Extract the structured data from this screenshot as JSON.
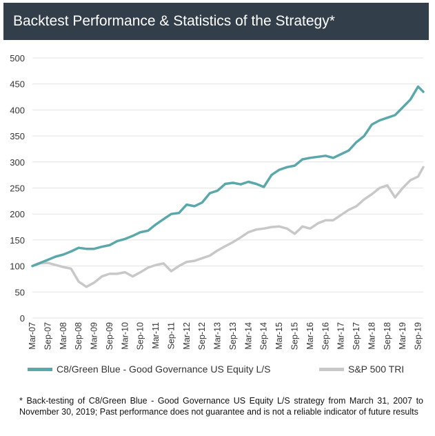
{
  "header": {
    "title": "Backtest Performance & Statistics of the Strategy*"
  },
  "colors": {
    "header_bg": "#333e4b",
    "c8": "#5ba8ab",
    "sp": "#c8c8c8",
    "grid": "#e3e3e3"
  },
  "chart_data": {
    "type": "line",
    "title": "",
    "xlabel": "",
    "ylabel": "",
    "ylim": [
      0,
      500
    ],
    "yticks": [
      0,
      50,
      100,
      150,
      200,
      250,
      300,
      350,
      400,
      450,
      500
    ],
    "xticks": [
      "Mar-07",
      "Sep-07",
      "Mar-08",
      "Sep-08",
      "Mar-09",
      "Sep-09",
      "Mar-10",
      "Sep-10",
      "Mar-11",
      "Sep-11",
      "Mar-12",
      "Sep-12",
      "Mar-13",
      "Sep-13",
      "Mar-14",
      "Sep-14",
      "Mar-15",
      "Sep-15",
      "Mar-16",
      "Sep-16",
      "Mar-17",
      "Sep-17",
      "Mar-18",
      "Sep-18",
      "Mar-19",
      "Sep-19"
    ],
    "grid": true,
    "legend_position": "bottom",
    "x_note": "Month-end dates from Mar-07 to Nov-19; values listed every 3 months (quarterly samples), the last point being Nov-19.",
    "x": [
      "Mar-07",
      "Jun-07",
      "Sep-07",
      "Dec-07",
      "Mar-08",
      "Jun-08",
      "Sep-08",
      "Dec-08",
      "Mar-09",
      "Jun-09",
      "Sep-09",
      "Dec-09",
      "Mar-10",
      "Jun-10",
      "Sep-10",
      "Dec-10",
      "Mar-11",
      "Jun-11",
      "Sep-11",
      "Dec-11",
      "Mar-12",
      "Jun-12",
      "Sep-12",
      "Dec-12",
      "Mar-13",
      "Jun-13",
      "Sep-13",
      "Dec-13",
      "Mar-14",
      "Jun-14",
      "Sep-14",
      "Dec-14",
      "Mar-15",
      "Jun-15",
      "Sep-15",
      "Dec-15",
      "Mar-16",
      "Jun-16",
      "Sep-16",
      "Dec-16",
      "Mar-17",
      "Jun-17",
      "Sep-17",
      "Dec-17",
      "Mar-18",
      "Jun-18",
      "Sep-18",
      "Dec-18",
      "Mar-19",
      "Jun-19",
      "Sep-19",
      "Nov-19"
    ],
    "series": [
      {
        "name": "C8/Green Blue - Good Governance US Equity L/S",
        "values": [
          100,
          106,
          112,
          118,
          122,
          128,
          135,
          133,
          133,
          137,
          140,
          148,
          152,
          158,
          165,
          168,
          180,
          190,
          200,
          202,
          218,
          215,
          222,
          240,
          245,
          258,
          260,
          257,
          262,
          258,
          252,
          275,
          285,
          290,
          293,
          305,
          308,
          310,
          312,
          308,
          315,
          322,
          338,
          350,
          372,
          380,
          385,
          390,
          405,
          420,
          445,
          435
        ]
      },
      {
        "name": "S&P 500 TRI",
        "values": [
          100,
          105,
          106,
          102,
          98,
          95,
          70,
          60,
          68,
          80,
          85,
          85,
          88,
          80,
          88,
          97,
          102,
          105,
          90,
          100,
          108,
          110,
          115,
          120,
          130,
          138,
          146,
          155,
          165,
          170,
          172,
          175,
          176,
          172,
          162,
          176,
          172,
          182,
          188,
          188,
          198,
          208,
          215,
          228,
          238,
          250,
          255,
          232,
          250,
          265,
          272,
          290
        ]
      }
    ]
  },
  "legend": {
    "series1": "C8/Green Blue - Good Governance US Equity L/S",
    "series2": "S&P 500 TRI"
  },
  "footnote": "* Back-testing of C8/Green Blue - Good Governance US Equity L/S strategy from March 31, 2007 to November 30, 2019; Past performance does not guarantee and is not a reliable indicator of future results"
}
